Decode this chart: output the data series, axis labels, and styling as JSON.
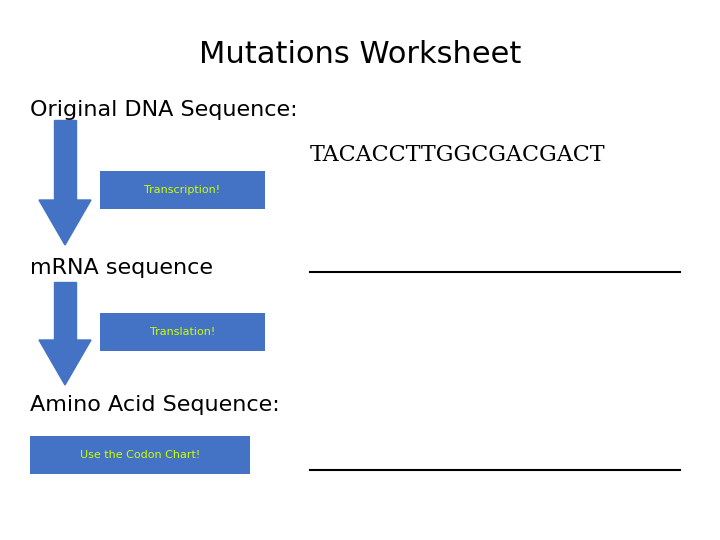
{
  "title": "Mutations Worksheet",
  "title_fontsize": 22,
  "background_color": "#ffffff",
  "text_color": "#000000",
  "arrow_color": "#4472c4",
  "button_color": "#4472c4",
  "button_text_color": "#ccff00",
  "label1": "Original DNA Sequence:",
  "label1_fontsize": 16,
  "dna_sequence": "TACACCTTGGCGACGACT",
  "dna_fontsize": 16,
  "label2": "mRNA sequence",
  "label2_fontsize": 16,
  "label3": "Amino Acid Sequence:",
  "label3_fontsize": 16,
  "btn1_text": "Transcription!",
  "btn2_text": "Translation!",
  "btn3_text": "Use the Codon Chart!",
  "btn_fontsize": 8
}
